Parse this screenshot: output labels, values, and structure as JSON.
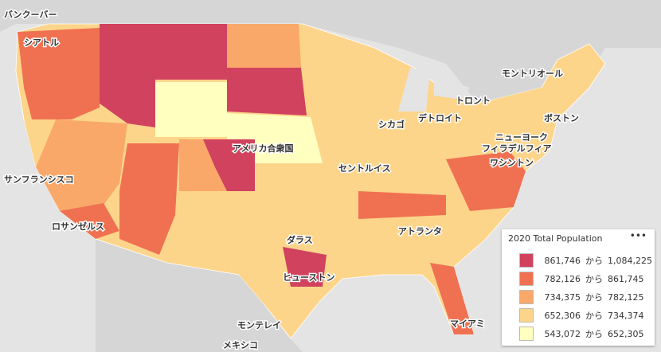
{
  "map": {
    "labels": [
      "バンクーバー",
      "シアトル",
      "サンフランシスコ",
      "ロサンゼルス",
      "アメリカ合衆国",
      "ダラス",
      "ヒューストン",
      "セントルイス",
      "シカゴ",
      "デトロイト",
      "トロント",
      "モントリオール",
      "ボストン",
      "ニューヨーク",
      "フィラデルフィア",
      "ワシントン",
      "アトランタ",
      "マイアミ",
      "モンテレイ",
      "メキシコ"
    ]
  },
  "legend": {
    "title": "2020 Total Population",
    "menu": "•••",
    "items": [
      {
        "from": "861,746",
        "sep": "から",
        "to": "1,084,225",
        "color": "#d1425f"
      },
      {
        "from": "782,126",
        "sep": "から",
        "to": "861,745",
        "color": "#f07152"
      },
      {
        "from": "734,375",
        "sep": "から",
        "to": "782,125",
        "color": "#f9a86a"
      },
      {
        "from": "652,306",
        "sep": "から",
        "to": "734,374",
        "color": "#fcd58a"
      },
      {
        "from": "543,072",
        "sep": "から",
        "to": "652,305",
        "color": "#ffffc0"
      }
    ]
  }
}
